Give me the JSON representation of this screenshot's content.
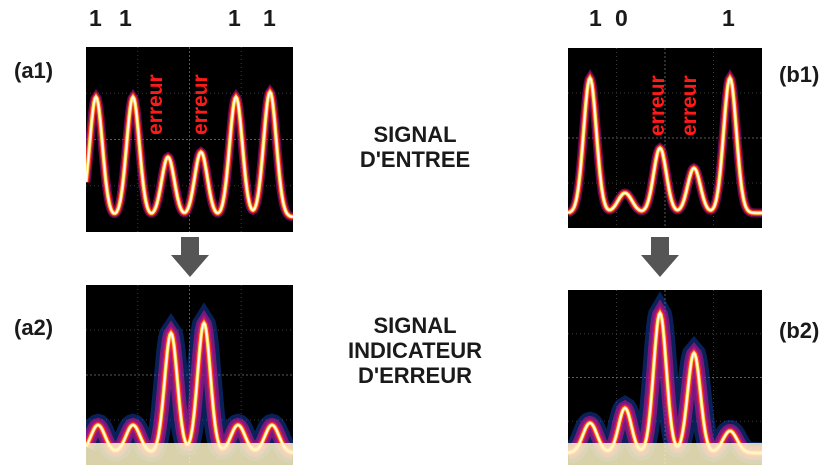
{
  "bits_a": [
    "1",
    "1",
    "1",
    "1"
  ],
  "bits_b": [
    "1",
    "0",
    "1"
  ],
  "labels": {
    "a1": "(a1)",
    "a2": "(a2)",
    "b1": "(b1)",
    "b2": "(b2)"
  },
  "center_top": [
    "SIGNAL",
    "D'ENTREE"
  ],
  "center_bottom": [
    "SIGNAL",
    "INDICATEUR",
    "D'ERREUR"
  ],
  "error_word": "erreur",
  "colors": {
    "error": "#ff1a1a",
    "trace_core": "#ffffff",
    "trace_glow": "#ff3010",
    "scope_bg": "#000000",
    "arrow": "#555555"
  }
}
